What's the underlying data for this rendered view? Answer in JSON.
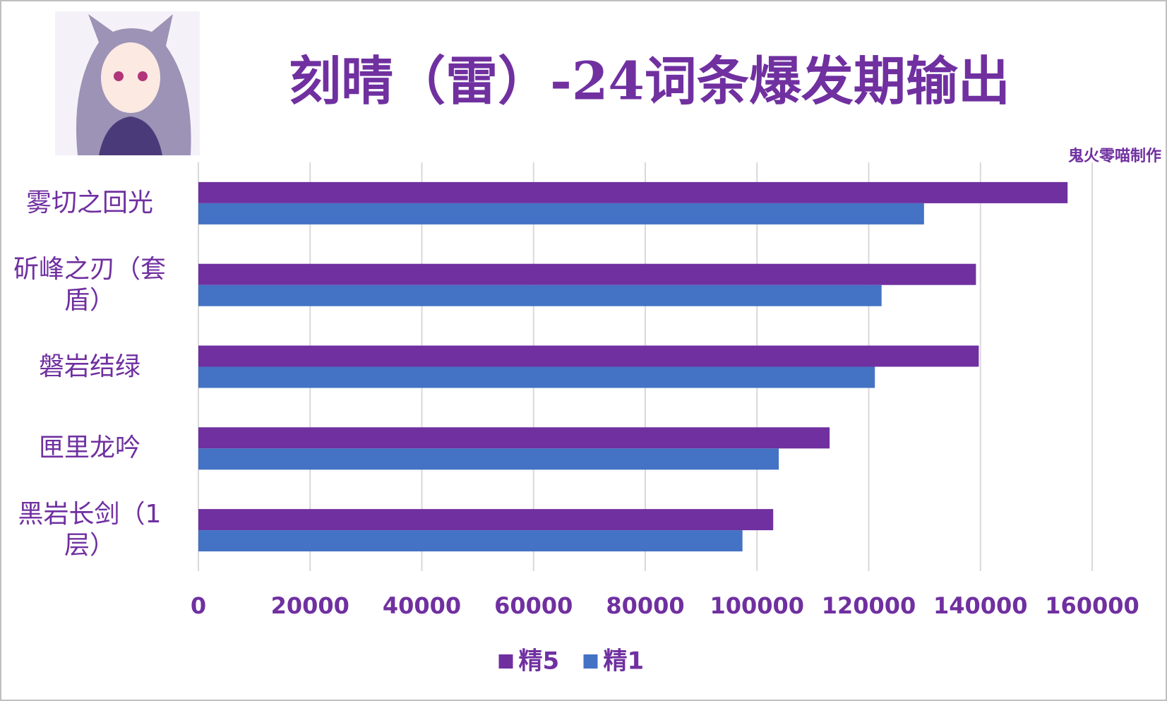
{
  "chart_data": {
    "type": "barh",
    "title": "刻晴（雷）-24词条爆发期输出",
    "subtitle": "鬼火零喵制作",
    "categories": [
      "雾切之回光",
      "斫峰之刃（套盾）",
      "磐岩结绿",
      "匣里龙吟",
      "黑岩长剑（1层）"
    ],
    "series": [
      {
        "name": "精5",
        "color": "#7030a0",
        "values": [
          155600,
          139200,
          139700,
          113000,
          102900
        ]
      },
      {
        "name": "精1",
        "color": "#4472c4",
        "values": [
          129900,
          122300,
          121100,
          103900,
          97400
        ]
      }
    ],
    "xlim": [
      0,
      160000
    ],
    "xticks": [
      0,
      20000,
      40000,
      60000,
      80000,
      100000,
      120000,
      140000,
      160000
    ],
    "grid": true,
    "legend": "bottom"
  }
}
